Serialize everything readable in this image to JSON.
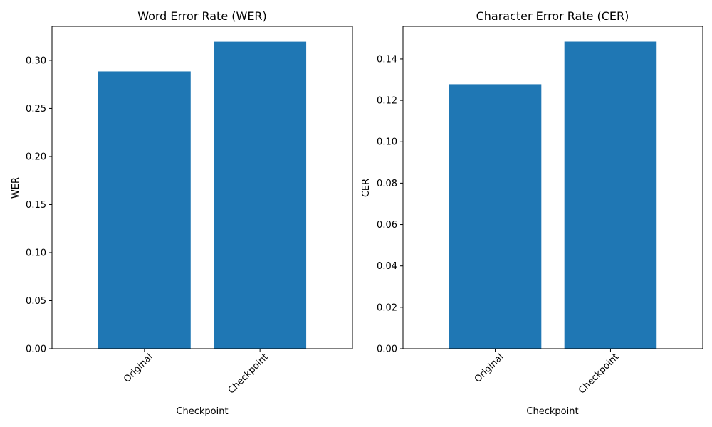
{
  "colors": {
    "bar": "#1f77b4",
    "axis": "#000000",
    "background": "#ffffff"
  },
  "chart_data": [
    {
      "type": "bar",
      "title": "Word Error Rate (WER)",
      "xlabel": "Checkpoint",
      "ylabel": "WER",
      "categories": [
        "Original",
        "Checkpoint"
      ],
      "values": [
        0.2885,
        0.3195
      ],
      "ylim": [
        0,
        0.3355
      ],
      "yticks": [
        0.0,
        0.05,
        0.1,
        0.15,
        0.2,
        0.25,
        0.3
      ],
      "ytick_labels": [
        "0.00",
        "0.05",
        "0.10",
        "0.15",
        "0.20",
        "0.25",
        "0.30"
      ],
      "grid": false,
      "legend": "none"
    },
    {
      "type": "bar",
      "title": "Character Error Rate (CER)",
      "xlabel": "Checkpoint",
      "ylabel": "CER",
      "categories": [
        "Original",
        "Checkpoint"
      ],
      "values": [
        0.1278,
        0.1484
      ],
      "ylim": [
        0,
        0.1558
      ],
      "yticks": [
        0.0,
        0.02,
        0.04,
        0.06,
        0.08,
        0.1,
        0.12,
        0.14
      ],
      "ytick_labels": [
        "0.00",
        "0.02",
        "0.04",
        "0.06",
        "0.08",
        "0.10",
        "0.12",
        "0.14"
      ],
      "grid": false,
      "legend": "none"
    }
  ]
}
